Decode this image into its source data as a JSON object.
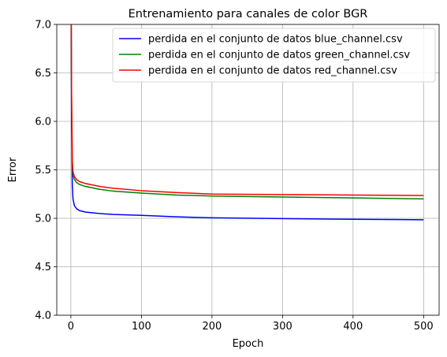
{
  "chart_data": {
    "type": "line",
    "title": "Entrenamiento para canales de color BGR",
    "xlabel": "Epoch",
    "ylabel": "Error",
    "xlim": [
      -20,
      522
    ],
    "ylim": [
      4.0,
      7.0
    ],
    "x_ticks": [
      0,
      100,
      200,
      300,
      400,
      500
    ],
    "x_tick_labels": [
      "0",
      "100",
      "200",
      "300",
      "400",
      "500"
    ],
    "y_ticks": [
      4.0,
      4.5,
      5.0,
      5.5,
      6.0,
      6.5,
      7.0
    ],
    "y_tick_labels": [
      "4.0",
      "4.5",
      "5.0",
      "5.5",
      "6.0",
      "6.5",
      "7.0"
    ],
    "grid": true,
    "legend_position": "top-right",
    "series": [
      {
        "name": "perdida en el conjunto de datos blue_channel.csv",
        "color": "#0000ff",
        "x": [
          0,
          1,
          2,
          3,
          5,
          8,
          12,
          20,
          40,
          60,
          100,
          150,
          200,
          300,
          400,
          500
        ],
        "y": [
          7.9,
          6.0,
          5.35,
          5.2,
          5.13,
          5.1,
          5.08,
          5.065,
          5.05,
          5.04,
          5.03,
          5.015,
          5.005,
          4.997,
          4.99,
          4.985
        ]
      },
      {
        "name": "perdida en el conjunto de datos green_channel.csv",
        "color": "#008000",
        "x": [
          0,
          1,
          2,
          3,
          5,
          8,
          12,
          20,
          40,
          60,
          100,
          150,
          200,
          300,
          400,
          500
        ],
        "y": [
          7.9,
          6.2,
          5.55,
          5.45,
          5.4,
          5.37,
          5.35,
          5.33,
          5.3,
          5.28,
          5.26,
          5.24,
          5.23,
          5.22,
          5.21,
          5.2
        ]
      },
      {
        "name": "perdida en el conjunto de datos red_channel.csv",
        "color": "#ff0000",
        "x": [
          0,
          1,
          2,
          3,
          5,
          8,
          12,
          20,
          40,
          60,
          100,
          150,
          200,
          300,
          400,
          500
        ],
        "y": [
          7.9,
          6.3,
          5.6,
          5.48,
          5.43,
          5.4,
          5.38,
          5.36,
          5.33,
          5.31,
          5.285,
          5.265,
          5.25,
          5.245,
          5.24,
          5.235
        ]
      }
    ]
  }
}
